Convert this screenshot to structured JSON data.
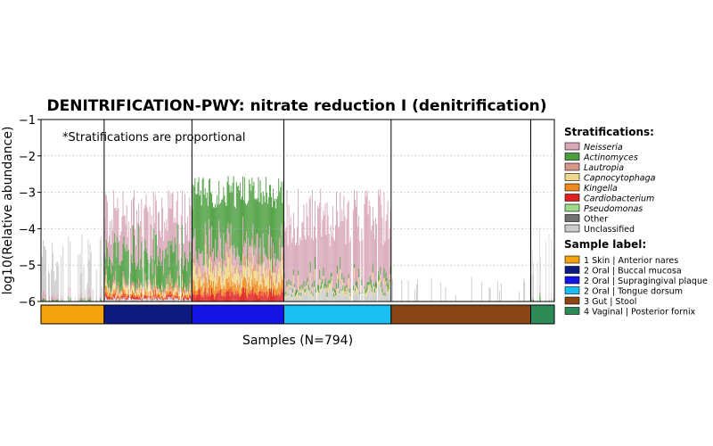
{
  "chart_data": {
    "type": "bar",
    "title": "DENITRIFICATION-PWY: nitrate reduction I (denitrification)",
    "annotation": "*Stratifications are proportional",
    "xlabel": "Samples (N=794)",
    "ylabel": "log10(Relative abundance)",
    "ylim": [
      -6,
      -1
    ],
    "yticks": [
      -6,
      -5,
      -4,
      -3,
      -2,
      -1
    ],
    "ytick_labels": [
      "−6",
      "−5",
      "−4",
      "−3",
      "−2",
      "−1"
    ],
    "grid": "horizontal dotted",
    "legend_placement": "right",
    "stratifications_title": "Stratifications:",
    "sample_label_title": "Sample label:",
    "stratifications": [
      {
        "name": "Neisseria",
        "color": "#d9a8b9",
        "italic": true
      },
      {
        "name": "Actinomyces",
        "color": "#4c9e3f",
        "italic": true
      },
      {
        "name": "Lautropia",
        "color": "#d9968a",
        "italic": true
      },
      {
        "name": "Capnocytophaga",
        "color": "#f0d88c",
        "italic": true
      },
      {
        "name": "Kingella",
        "color": "#f08a1e",
        "italic": true
      },
      {
        "name": "Cardiobacterium",
        "color": "#e02020",
        "italic": true
      },
      {
        "name": "Pseudomonas",
        "color": "#9ed98a",
        "italic": true
      },
      {
        "name": "Other",
        "color": "#707070",
        "italic": false
      },
      {
        "name": "Unclassified",
        "color": "#cccccc",
        "italic": false
      }
    ],
    "sample_groups": [
      {
        "label": "1 Skin | Anterior nares",
        "color": "#f5a30a",
        "sample_fraction": 0.123
      },
      {
        "label": "2 Oral | Buccal mucosa",
        "color": "#0d1a80",
        "sample_fraction": 0.171
      },
      {
        "label": "2 Oral | Supragingival plaque",
        "color": "#1414e6",
        "sample_fraction": 0.179
      },
      {
        "label": "2 Oral | Tongue dorsum",
        "color": "#19bff2",
        "sample_fraction": 0.209
      },
      {
        "label": "3 Gut | Stool",
        "color": "#8b4513",
        "sample_fraction": 0.272
      },
      {
        "label": "4 Vaginal | Posterior fornix",
        "color": "#2e8b57",
        "sample_fraction": 0.096
      }
    ],
    "group_profiles": [
      {
        "group": "1 Skin | Anterior nares",
        "bars": 70,
        "typical_log10": -5.0,
        "spread": 0.9,
        "presence": 0.55,
        "composition": {
          "Unclassified": 0.85,
          "Neisseria": 0.1,
          "Actinomyces": 0.05
        }
      },
      {
        "group": "2 Oral | Buccal mucosa",
        "bars": 95,
        "typical_log10": -3.7,
        "spread": 0.8,
        "presence": 0.92,
        "composition": {
          "Neisseria": 0.45,
          "Actinomyces": 0.35,
          "Lautropia": 0.05,
          "Capnocytophaga": 0.05,
          "Kingella": 0.04,
          "Cardiobacterium": 0.03,
          "Unclassified": 0.03
        }
      },
      {
        "group": "2 Oral | Supragingival plaque",
        "bars": 100,
        "typical_log10": -3.0,
        "spread": 0.45,
        "presence": 1.0,
        "composition": {
          "Actinomyces": 0.55,
          "Neisseria": 0.12,
          "Lautropia": 0.06,
          "Capnocytophaga": 0.12,
          "Kingella": 0.08,
          "Cardiobacterium": 0.07
        }
      },
      {
        "group": "2 Oral | Tongue dorsum",
        "bars": 115,
        "typical_log10": -3.7,
        "spread": 0.8,
        "presence": 0.95,
        "composition": {
          "Neisseria": 0.8,
          "Actinomyces": 0.05,
          "Capnocytophaga": 0.05,
          "Unclassified": 0.1
        }
      },
      {
        "group": "3 Gut | Stool",
        "bars": 150,
        "typical_log10": -5.6,
        "spread": 0.3,
        "presence": 0.12,
        "composition": {
          "Unclassified": 1.0
        }
      },
      {
        "group": "4 Vaginal | Posterior fornix",
        "bars": 55,
        "typical_log10": -4.8,
        "spread": 0.9,
        "presence": 0.25,
        "composition": {
          "Unclassified": 0.9,
          "Neisseria": 0.05,
          "Actinomyces": 0.05
        }
      }
    ]
  }
}
